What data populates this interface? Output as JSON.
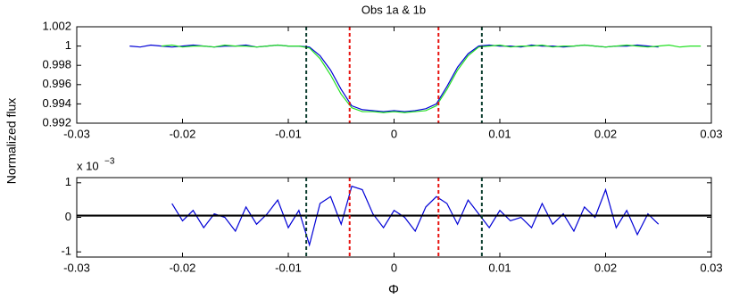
{
  "ylabel": "Normalized flux",
  "chart_data": [
    {
      "type": "line",
      "title": "Obs 1a & 1b",
      "xlim": [
        -0.03,
        0.03
      ],
      "xticks": [
        -0.03,
        -0.02,
        -0.01,
        0,
        0.01,
        0.02,
        0.03
      ],
      "ylim": [
        0.992,
        1.002
      ],
      "yticks": [
        0.992,
        0.994,
        0.996,
        0.998,
        1,
        1.002
      ],
      "vlines": [
        {
          "x": -0.0083,
          "color": "#0b3d2e"
        },
        {
          "x": -0.0042,
          "color": "#e8130f"
        },
        {
          "x": 0.0042,
          "color": "#e8130f"
        },
        {
          "x": 0.0083,
          "color": "#0b3d2e"
        }
      ],
      "series": [
        {
          "color": "#0000d6",
          "x": [
            -0.025,
            -0.024,
            -0.023,
            -0.022,
            -0.021,
            -0.02,
            -0.019,
            -0.018,
            -0.017,
            -0.016,
            -0.015,
            -0.014,
            -0.013,
            -0.012,
            -0.011,
            -0.01,
            -0.009,
            -0.008,
            -0.007,
            -0.006,
            -0.005,
            -0.004,
            -0.003,
            -0.002,
            -0.001,
            0,
            0.001,
            0.002,
            0.003,
            0.004,
            0.005,
            0.006,
            0.007,
            0.008,
            0.009,
            0.01,
            0.011,
            0.012,
            0.013,
            0.014,
            0.015,
            0.016,
            0.017,
            0.018,
            0.019,
            0.02,
            0.021,
            0.022,
            0.023,
            0.024,
            0.025
          ],
          "values": [
            1.0,
            0.9999,
            1.0001,
            1.0,
            0.9999,
            1.0,
            1.0001,
            1.0,
            0.9999,
            1.0,
            1.0,
            1.0001,
            0.9999,
            1.0,
            1.0001,
            1.0,
            1.0,
            0.9999,
            0.999,
            0.9975,
            0.9955,
            0.9938,
            0.9934,
            0.9933,
            0.9932,
            0.9933,
            0.9932,
            0.9933,
            0.9935,
            0.994,
            0.9958,
            0.9978,
            0.9992,
            1.0,
            1.0001,
            1.0,
            1.0,
            0.9999,
            1.0001,
            1.0,
            1.0,
            0.9999,
            1.0,
            1.0001,
            1.0,
            0.9999,
            1.0,
            1.0,
            1.0001,
            1.0,
            0.9999
          ]
        },
        {
          "color": "#22e022",
          "x": [
            -0.022,
            -0.021,
            -0.02,
            -0.019,
            -0.018,
            -0.017,
            -0.016,
            -0.015,
            -0.014,
            -0.013,
            -0.012,
            -0.011,
            -0.01,
            -0.009,
            -0.008,
            -0.007,
            -0.006,
            -0.005,
            -0.004,
            -0.003,
            -0.002,
            -0.001,
            0,
            0.001,
            0.002,
            0.003,
            0.004,
            0.005,
            0.006,
            0.007,
            0.008,
            0.009,
            0.01,
            0.011,
            0.012,
            0.013,
            0.014,
            0.015,
            0.016,
            0.017,
            0.018,
            0.019,
            0.02,
            0.021,
            0.022,
            0.023,
            0.024,
            0.025,
            0.026,
            0.027,
            0.028,
            0.029
          ],
          "values": [
            1.0,
            1.0001,
            0.9999,
            1.0,
            1.0,
            0.9999,
            1.0001,
            1.0,
            1.0,
            0.9999,
            1.0,
            1.0001,
            1.0,
            1.0,
            0.9998,
            0.9987,
            0.997,
            0.995,
            0.9936,
            0.9932,
            0.9932,
            0.9931,
            0.9932,
            0.9931,
            0.9932,
            0.9933,
            0.9938,
            0.9955,
            0.9975,
            0.999,
            0.9999,
            1.0,
            1.0001,
            0.9999,
            1.0,
            1.0,
            1.0001,
            0.9999,
            1.0,
            1.0,
            1.0001,
            1.0,
            0.9999,
            1.0,
            1.0001,
            1.0,
            0.9999,
            1.0,
            1.0001,
            0.9999,
            1.0,
            1.0
          ]
        }
      ]
    },
    {
      "type": "line",
      "xlabel": "Φ",
      "multiplier": {
        "base": "x 10",
        "exponent": "−3"
      },
      "xlim": [
        -0.03,
        0.03
      ],
      "xticks": [
        -0.03,
        -0.02,
        -0.01,
        0,
        0.01,
        0.02,
        0.03
      ],
      "ylim": [
        -1.15,
        1.15
      ],
      "yticks": [
        -1,
        0,
        1
      ],
      "hline": {
        "y": 0.05,
        "color": "#000000"
      },
      "vlines": [
        {
          "x": -0.0083,
          "color": "#0b3d2e"
        },
        {
          "x": -0.0042,
          "color": "#e8130f"
        },
        {
          "x": 0.0042,
          "color": "#e8130f"
        },
        {
          "x": 0.0083,
          "color": "#0b3d2e"
        }
      ],
      "series": [
        {
          "color": "#0000d6",
          "x": [
            -0.021,
            -0.02,
            -0.019,
            -0.018,
            -0.017,
            -0.016,
            -0.015,
            -0.014,
            -0.013,
            -0.012,
            -0.011,
            -0.01,
            -0.009,
            -0.008,
            -0.007,
            -0.006,
            -0.005,
            -0.004,
            -0.003,
            -0.002,
            -0.001,
            0,
            0.001,
            0.002,
            0.003,
            0.004,
            0.005,
            0.006,
            0.007,
            0.008,
            0.009,
            0.01,
            0.011,
            0.012,
            0.013,
            0.014,
            0.015,
            0.016,
            0.017,
            0.018,
            0.019,
            0.02,
            0.021,
            0.022,
            0.023,
            0.024,
            0.025
          ],
          "values": [
            0.4,
            -0.1,
            0.2,
            -0.3,
            0.1,
            0.0,
            -0.4,
            0.3,
            -0.2,
            0.1,
            0.5,
            -0.3,
            0.2,
            -0.8,
            0.4,
            0.6,
            -0.2,
            0.9,
            0.8,
            0.1,
            -0.3,
            0.2,
            0.0,
            -0.4,
            0.3,
            0.6,
            0.4,
            -0.2,
            0.5,
            0.1,
            -0.3,
            0.2,
            -0.1,
            0.0,
            -0.3,
            0.4,
            -0.2,
            0.1,
            -0.4,
            0.3,
            0.0,
            0.8,
            -0.3,
            0.2,
            -0.5,
            0.1,
            -0.2
          ]
        }
      ]
    }
  ]
}
